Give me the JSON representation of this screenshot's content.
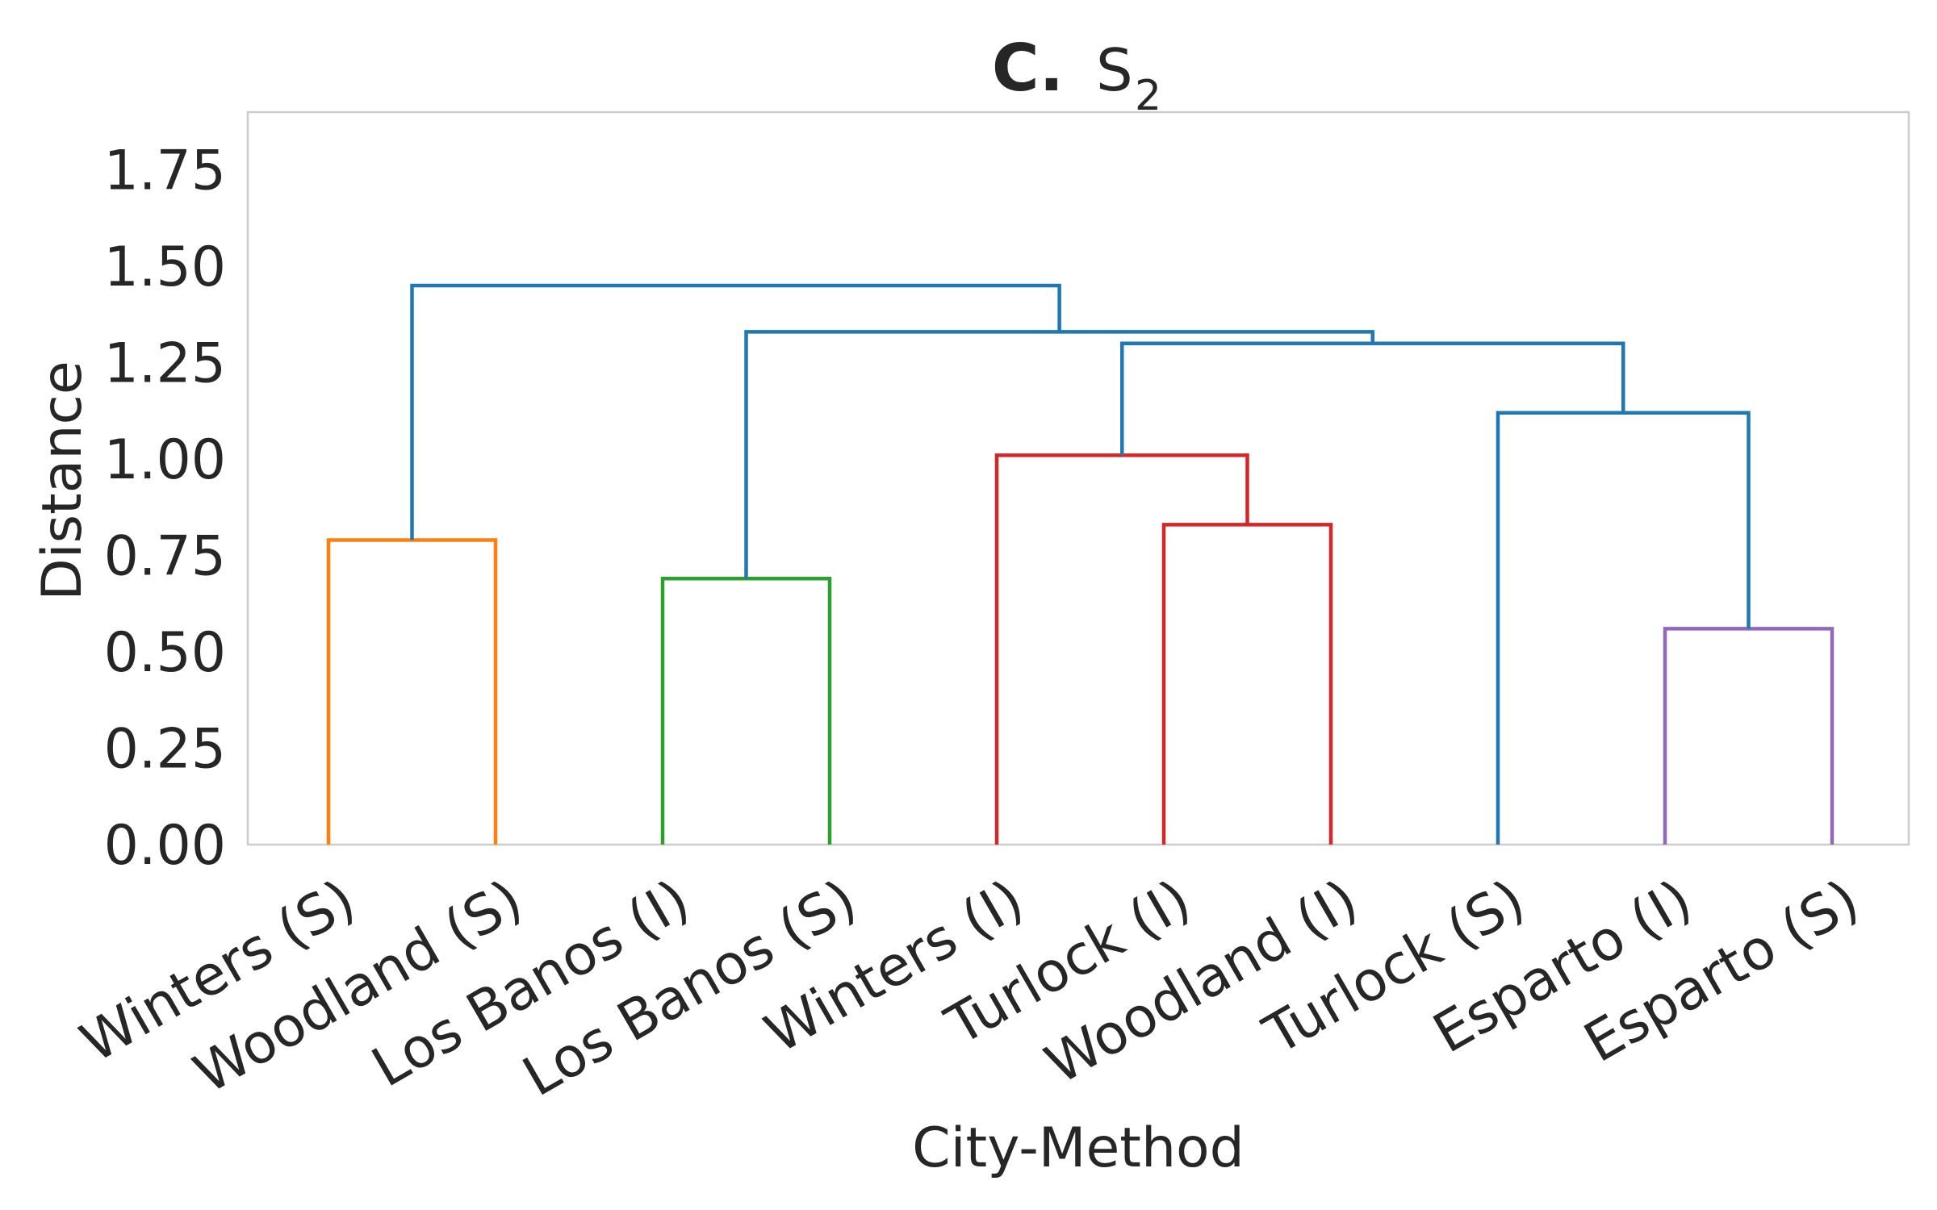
{
  "chart_data": {
    "type": "dendrogram",
    "title": {
      "prefix": "C.",
      "main": "S",
      "subscript": "2"
    },
    "xlabel": "City-Method",
    "ylabel": "Distance",
    "ylim": [
      0,
      1.9
    ],
    "yticks": [
      "0.00",
      "0.25",
      "0.50",
      "0.75",
      "1.00",
      "1.25",
      "1.50",
      "1.75"
    ],
    "ytick_values": [
      0,
      0.25,
      0.5,
      0.75,
      1.0,
      1.25,
      1.5,
      1.75
    ],
    "leaves": [
      "Winters (S)",
      "Woodland (S)",
      "Los Banos (I)",
      "Los Banos (S)",
      "Winters (I)",
      "Turlock (I)",
      "Woodland (I)",
      "Turlock (S)",
      "Esparto (I)",
      "Esparto (S)"
    ],
    "grid": false,
    "links": [
      {
        "id": "L1",
        "left": "leaf:0",
        "right": "leaf:1",
        "height": 0.79,
        "color": "#ff7f0e"
      },
      {
        "id": "L2",
        "left": "leaf:2",
        "right": "leaf:3",
        "height": 0.69,
        "color": "#2ca02c"
      },
      {
        "id": "L3",
        "left": "leaf:5",
        "right": "leaf:6",
        "height": 0.83,
        "color": "#d62728"
      },
      {
        "id": "L4",
        "left": "leaf:4",
        "right": "node:L3",
        "height": 1.01,
        "color": "#d62728"
      },
      {
        "id": "L5",
        "left": "leaf:8",
        "right": "leaf:9",
        "height": 0.56,
        "color": "#9467bd"
      },
      {
        "id": "L6",
        "left": "leaf:7",
        "right": "node:L5",
        "height": 1.12,
        "color": "#1f77b4"
      },
      {
        "id": "L7",
        "left": "node:L4",
        "right": "node:L6",
        "height": 1.3,
        "color": "#1f77b4"
      },
      {
        "id": "L8",
        "left": "node:L2",
        "right": "node:L7",
        "height": 1.33,
        "color": "#1f77b4"
      },
      {
        "id": "L9",
        "left": "node:L1",
        "right": "node:L8",
        "height": 1.45,
        "color": "#1f77b4"
      }
    ]
  }
}
